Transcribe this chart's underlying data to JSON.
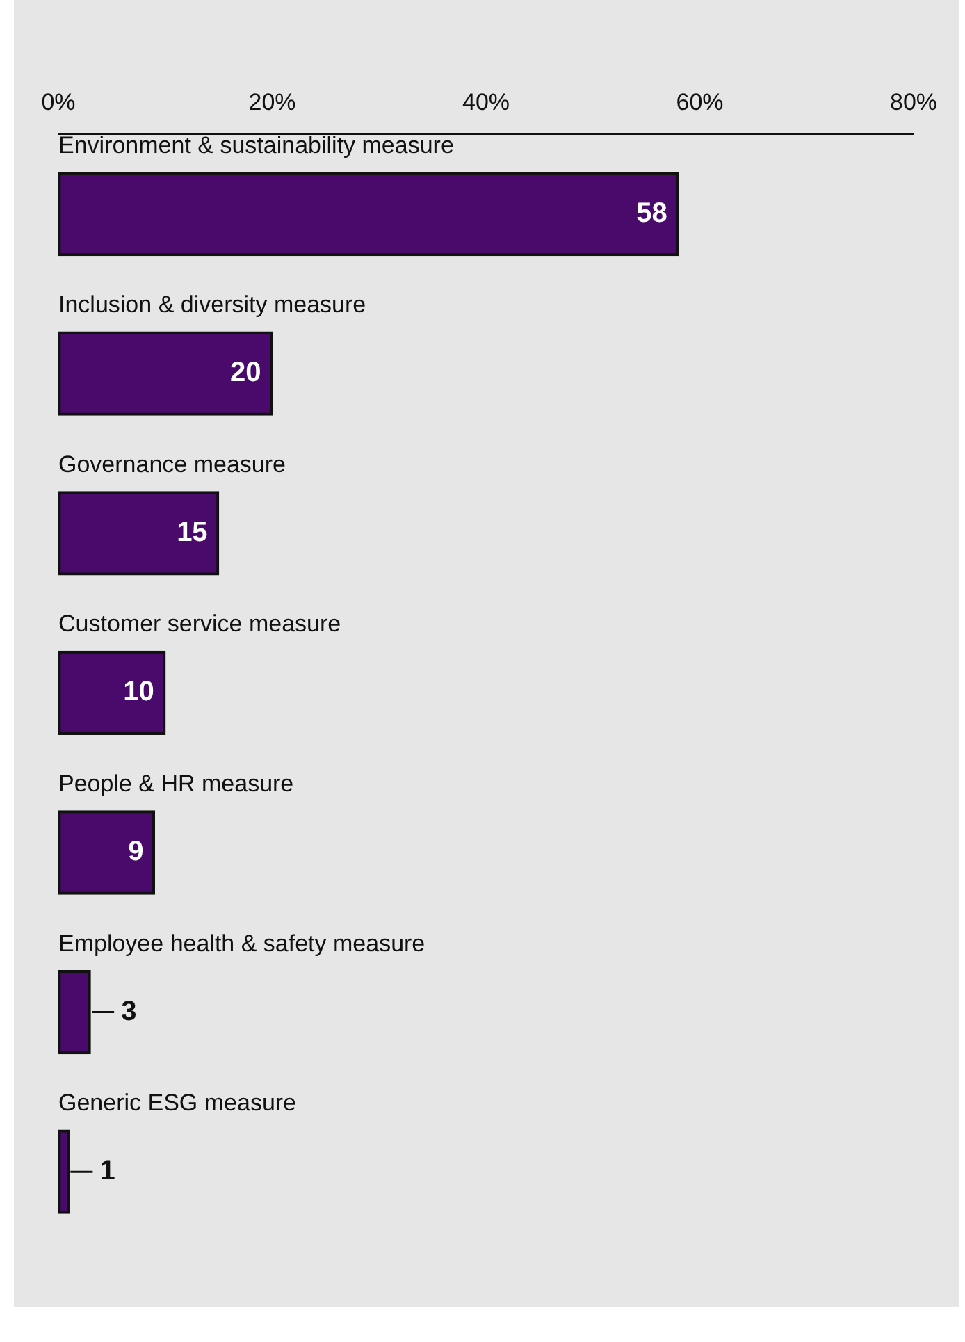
{
  "chart_data": {
    "type": "bar",
    "orientation": "horizontal",
    "categories": [
      "Environment & sustainability measure",
      "Inclusion & diversity measure",
      "Governance measure",
      "Customer service measure",
      "People & HR measure",
      "Employee health & safety measure",
      "Generic ESG measure"
    ],
    "values": [
      58,
      20,
      15,
      10,
      9,
      3,
      1
    ],
    "color": "#4a0a6b",
    "xlim": [
      0,
      80
    ],
    "xticks": [
      {
        "value": 0,
        "label": "0%"
      },
      {
        "value": 20,
        "label": "20%"
      },
      {
        "value": 40,
        "label": "40%"
      },
      {
        "value": 60,
        "label": "60%"
      },
      {
        "value": 80,
        "label": "80%"
      }
    ],
    "data_labels": true,
    "grid": false,
    "legend": false
  }
}
